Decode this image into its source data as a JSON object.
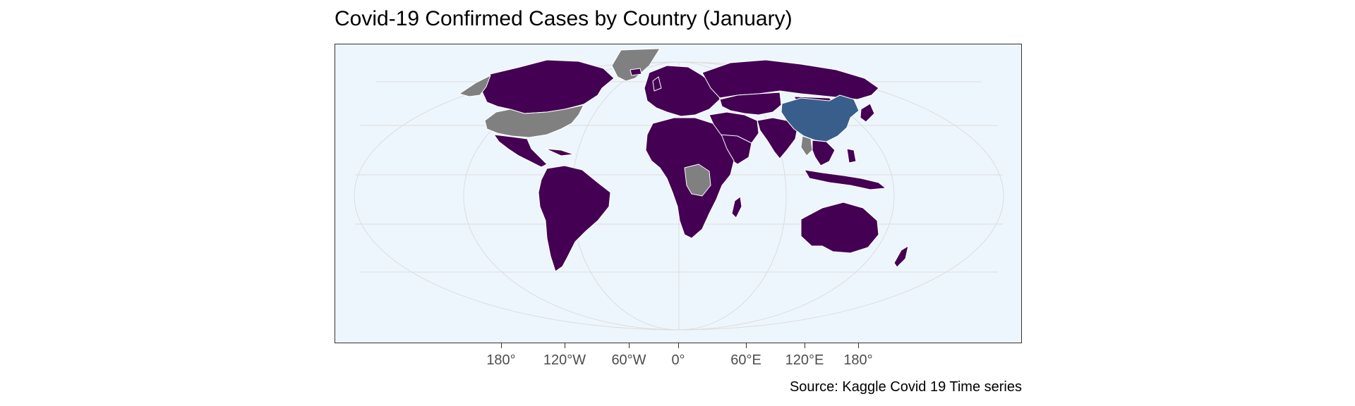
{
  "title": "Covid-19 Confirmed Cases by Country (January)",
  "caption": "Source: Kaggle Covid 19 Time series",
  "x_ticks": [
    "180°",
    "120°W",
    "60°W",
    "0°",
    "60°E",
    "120°E",
    "180°"
  ],
  "colors": {
    "ocean": "#eef6fd",
    "low_cases": "#440154",
    "high_cases": "#3a5e8c",
    "no_data": "#808080",
    "borders": "#ffffff",
    "graticule": "#dcdcdc"
  },
  "map_data": {
    "projection": "Robinson-like (world)",
    "regions": [
      {
        "name": "China",
        "category": "high"
      },
      {
        "name": "Canada",
        "category": "low"
      },
      {
        "name": "United States",
        "category": "no_data"
      },
      {
        "name": "Greenland",
        "category": "no_data"
      },
      {
        "name": "Mexico",
        "category": "low"
      },
      {
        "name": "South America",
        "category": "low"
      },
      {
        "name": "Europe",
        "category": "low"
      },
      {
        "name": "Russia",
        "category": "low"
      },
      {
        "name": "Africa",
        "category": "low"
      },
      {
        "name": "DR Congo",
        "category": "no_data"
      },
      {
        "name": "Middle East",
        "category": "low"
      },
      {
        "name": "India",
        "category": "low"
      },
      {
        "name": "Southeast Asia",
        "category": "low"
      },
      {
        "name": "Myanmar",
        "category": "no_data"
      },
      {
        "name": "Australia",
        "category": "low"
      },
      {
        "name": "Madagascar",
        "category": "low"
      }
    ]
  }
}
